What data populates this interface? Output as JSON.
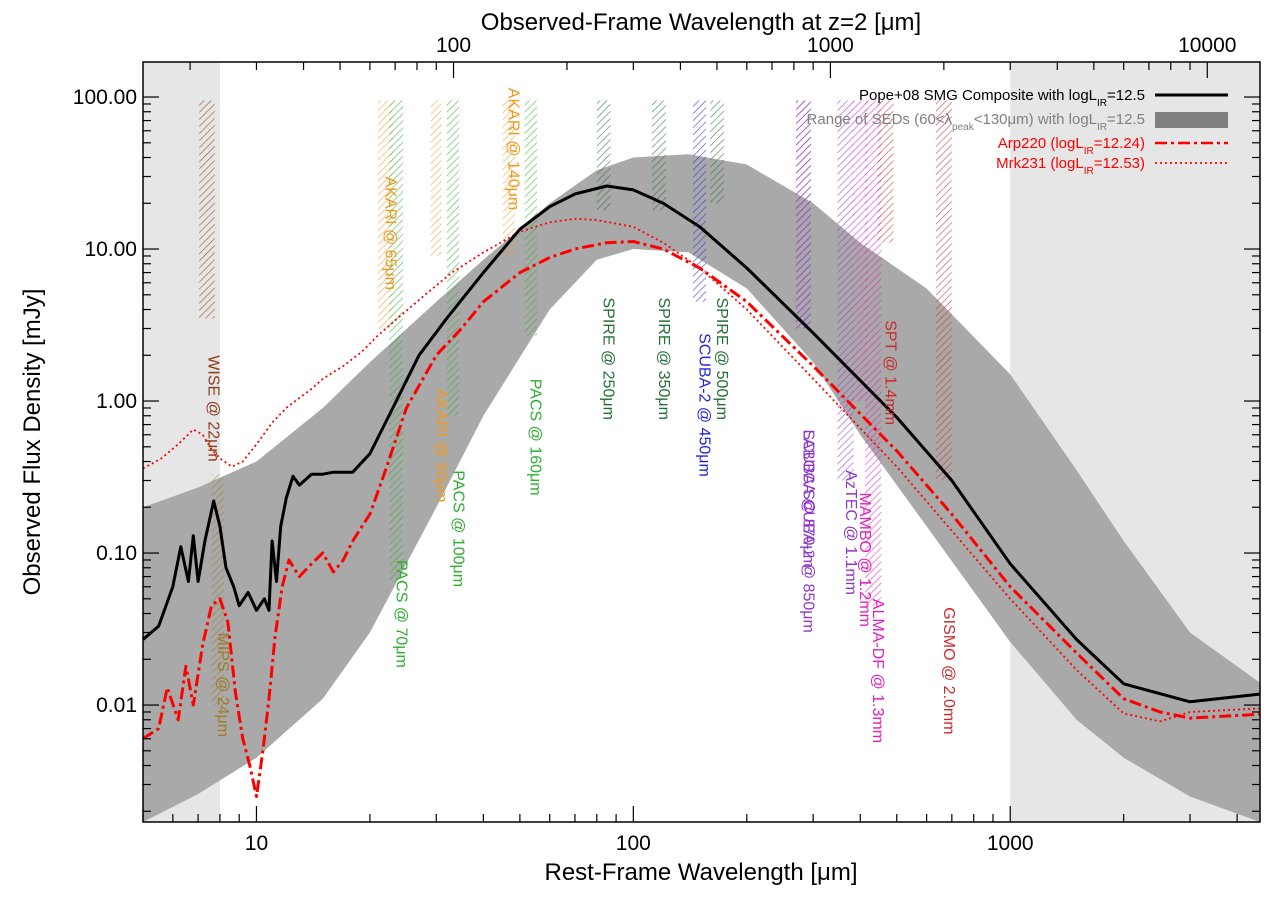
{
  "chart_data": {
    "type": "line",
    "scale": "log-log",
    "title": "",
    "xlabel": "Rest-Frame Wavelength [μm]",
    "x2label": "Observed-Frame Wavelength at z=2 [μm]",
    "ylabel": "Observed Flux Density [mJy]",
    "xlim": [
      5,
      4600
    ],
    "ylim": [
      0.0017,
      170
    ],
    "x2_redshift": 2,
    "xticks": [
      {
        "value": 10,
        "label": "10"
      },
      {
        "value": 100,
        "label": "100"
      },
      {
        "value": 1000,
        "label": "1000"
      }
    ],
    "x2ticks": [
      {
        "value": 100,
        "label": "100"
      },
      {
        "value": 1000,
        "label": "1000"
      },
      {
        "value": 10000,
        "label": "10000"
      }
    ],
    "yticks": [
      {
        "value": 0.01,
        "label": "0.01"
      },
      {
        "value": 0.1,
        "label": "0.10"
      },
      {
        "value": 1,
        "label": "1.00"
      },
      {
        "value": 10,
        "label": "10.00"
      },
      {
        "value": 100,
        "label": "100.00"
      }
    ],
    "excluded_regions": [
      {
        "x0": 5,
        "x1": 8
      },
      {
        "x0": 1000,
        "x1": 4600
      }
    ],
    "colors": {
      "pope": "#000000",
      "range": "#a9a9a9",
      "arp220": "#ff0000",
      "mrk231": "#ff0000",
      "excluded": "#e6e6e6"
    },
    "legend": {
      "position": "top-right",
      "entries": [
        {
          "key": "pope",
          "label": "Pope+08 SMG Composite with logL",
          "sub": "IR",
          "suffix": "=12.5",
          "color": "#000000",
          "style": "solid"
        },
        {
          "key": "range",
          "label": "Range of SEDs (60<λ",
          "sub": "peak",
          "suffix": "<130μm) with logL",
          "sub2": "IR",
          "suffix2": "=12.5",
          "color": "#7f7f7f",
          "style": "box"
        },
        {
          "key": "arp220",
          "label": "Arp220 (logL",
          "sub": "IR",
          "suffix": "=12.24)",
          "color": "#ff0000",
          "style": "dashdot"
        },
        {
          "key": "mrk231",
          "label": "Mrk231 (logL",
          "sub": "IR",
          "suffix": "=12.53)",
          "color": "#ff0000",
          "style": "dotted"
        }
      ]
    },
    "series": [
      {
        "name": "Pope+08 SMG Composite",
        "key": "pope",
        "x": [
          5,
          5.5,
          6,
          6.3,
          6.6,
          6.8,
          7.0,
          7.3,
          7.7,
          8.0,
          8.3,
          8.7,
          9.0,
          9.5,
          10.0,
          10.5,
          10.8,
          11.0,
          11.3,
          11.6,
          12.0,
          12.5,
          13.0,
          14.0,
          15,
          16,
          18,
          20,
          23,
          27,
          32,
          40,
          50,
          60,
          70,
          85,
          100,
          120,
          150,
          200,
          300,
          500,
          700,
          1000,
          1500,
          2000,
          3000,
          4600
        ],
        "y": [
          0.027,
          0.033,
          0.06,
          0.11,
          0.065,
          0.13,
          0.065,
          0.12,
          0.22,
          0.15,
          0.08,
          0.06,
          0.045,
          0.055,
          0.042,
          0.05,
          0.042,
          0.12,
          0.065,
          0.15,
          0.23,
          0.32,
          0.28,
          0.33,
          0.33,
          0.34,
          0.34,
          0.45,
          0.9,
          2.0,
          3.5,
          7.0,
          13.5,
          19.0,
          23.0,
          26.0,
          24.5,
          20.0,
          14.0,
          7.5,
          2.8,
          0.78,
          0.3,
          0.085,
          0.027,
          0.0138,
          0.0105,
          0.0118
        ]
      },
      {
        "name": "Arp220",
        "key": "arp220",
        "x": [
          5,
          5.5,
          5.8,
          6.2,
          6.5,
          6.8,
          7.2,
          7.6,
          8.0,
          8.4,
          8.8,
          9.2,
          9.6,
          10.0,
          10.4,
          10.8,
          11.2,
          11.7,
          12.2,
          13,
          14,
          15,
          16,
          17,
          18,
          20,
          22,
          25,
          30,
          35,
          40,
          50,
          60,
          70,
          85,
          100,
          120,
          150,
          200,
          300,
          500,
          700,
          1000,
          1500,
          2000,
          2500,
          3000,
          4600
        ],
        "y": [
          0.006,
          0.007,
          0.013,
          0.008,
          0.018,
          0.01,
          0.025,
          0.045,
          0.05,
          0.035,
          0.012,
          0.006,
          0.004,
          0.0025,
          0.005,
          0.011,
          0.028,
          0.06,
          0.09,
          0.07,
          0.085,
          0.1,
          0.075,
          0.09,
          0.12,
          0.18,
          0.35,
          0.9,
          2.0,
          3.0,
          4.5,
          7.0,
          8.8,
          10.0,
          11.0,
          11.2,
          10.0,
          7.5,
          4.5,
          1.7,
          0.47,
          0.18,
          0.06,
          0.022,
          0.011,
          0.009,
          0.0082,
          0.0087
        ]
      },
      {
        "name": "Mrk231",
        "key": "mrk231",
        "x": [
          5,
          5.6,
          6.2,
          6.8,
          7.2,
          7.6,
          8.0,
          8.6,
          9.2,
          10,
          11,
          12,
          13,
          14,
          15,
          17,
          19,
          21,
          24,
          28,
          33,
          40,
          50,
          60,
          70,
          80,
          100,
          120,
          150,
          200,
          300,
          500,
          700,
          1000,
          1500,
          2000,
          2500,
          3000,
          4600
        ],
        "y": [
          0.36,
          0.42,
          0.52,
          0.65,
          0.6,
          0.48,
          0.42,
          0.37,
          0.4,
          0.52,
          0.72,
          0.9,
          1.05,
          1.2,
          1.4,
          1.7,
          2.1,
          2.7,
          3.6,
          5.0,
          7.0,
          9.5,
          13.0,
          15.0,
          15.8,
          15.5,
          14.0,
          11.0,
          7.5,
          4.0,
          1.4,
          0.37,
          0.14,
          0.05,
          0.017,
          0.0088,
          0.0078,
          0.009,
          0.0095
        ]
      },
      {
        "name": "Range of SEDs",
        "key": "range",
        "type": "area",
        "x": [
          5,
          7,
          10,
          15,
          20,
          30,
          40,
          60,
          80,
          100,
          140,
          200,
          300,
          400,
          600,
          1000,
          1500,
          2000,
          3000,
          4600
        ],
        "y_low": [
          0.0017,
          0.0026,
          0.0045,
          0.011,
          0.03,
          0.2,
          0.8,
          4.0,
          8.5,
          10.0,
          9.5,
          5.5,
          1.8,
          0.6,
          0.15,
          0.026,
          0.008,
          0.0045,
          0.0025,
          0.0017
        ],
        "y_high": [
          0.2,
          0.27,
          0.4,
          0.9,
          1.8,
          4.5,
          8.5,
          20.0,
          33.0,
          40.0,
          42.0,
          36.0,
          20.0,
          11.0,
          5.5,
          1.5,
          0.35,
          0.12,
          0.03,
          0.014
        ]
      }
    ],
    "bands": [
      {
        "name": "WISE @ 22μm",
        "x0": 7.05,
        "x1": 7.75,
        "ytop": 95,
        "ybot": 3.5,
        "color": "#8b3a1a",
        "label_x": 7.45,
        "label_y": 2.0
      },
      {
        "name": "MIPS @ 24μm",
        "x0": 7.6,
        "x1": 8.2,
        "ytop": 0.33,
        "ybot": 0.01,
        "color": "#a07b28",
        "label_x": 7.9,
        "label_y": 0.03
      },
      {
        "name": "AKARI @ 65μm",
        "x0": 21,
        "x1": 23,
        "ytop": 95,
        "ybot": 3.0,
        "color": "#ee9a20",
        "label_x": 22,
        "label_y": 30
      },
      {
        "name": "PACS @ 70μm",
        "x0": 22.5,
        "x1": 24.5,
        "ytop": 95,
        "ybot": 0.065,
        "color": "#2eae30",
        "label_x": 23.5,
        "label_y": 0.09
      },
      {
        "name": "AKARI @ 90μm",
        "x0": 29,
        "x1": 31,
        "ytop": 95,
        "ybot": 9.0,
        "color": "#ee9a20",
        "label_x": 30,
        "label_y": 1.2
      },
      {
        "name": "PACS @ 100μm",
        "x0": 32,
        "x1": 34.5,
        "ytop": 95,
        "ybot": 0.8,
        "color": "#2eae30",
        "label_x": 33.3,
        "label_y": 0.35
      },
      {
        "name": "AKARI @ 140μm",
        "x0": 45,
        "x1": 48.5,
        "ytop": 95,
        "ybot": 9.0,
        "color": "#ee9a20",
        "label_x": 46.7,
        "label_y": 115
      },
      {
        "name": "PACS @ 160μm",
        "x0": 51.5,
        "x1": 55.5,
        "ytop": 95,
        "ybot": 2.7,
        "color": "#2eae30",
        "label_x": 53.3,
        "label_y": 1.4
      },
      {
        "name": "SPIRE @ 250μm",
        "x0": 80,
        "x1": 87,
        "ytop": 95,
        "ybot": 18,
        "color": "#226e34",
        "label_x": 83.3,
        "label_y": 4.8
      },
      {
        "name": "SPIRE @ 350μm",
        "x0": 112,
        "x1": 122,
        "ytop": 95,
        "ybot": 18,
        "color": "#226e34",
        "label_x": 117,
        "label_y": 4.8
      },
      {
        "name": "SCUBA-2 @ 450μm",
        "x0": 144,
        "x1": 156,
        "ytop": 95,
        "ybot": 4.5,
        "color": "#2222e0",
        "label_x": 150,
        "label_y": 2.8
      },
      {
        "name": "SPIRE @ 500μm",
        "x0": 160,
        "x1": 174,
        "ytop": 95,
        "ybot": 20,
        "color": "#226e34",
        "label_x": 166.7,
        "label_y": 4.8
      },
      {
        "name": "SCUBA/SCUBA-2 @ 850μm",
        "x0": 270,
        "x1": 296,
        "ytop": 95,
        "ybot": 3.0,
        "color": "#8e35cc",
        "label_x": 283,
        "label_y": 0.65
      },
      {
        "name": "LABOCA @ 870μm",
        "x0": 270,
        "x1": 296,
        "ytop": 95,
        "ybot": 3.0,
        "color": "#8e35cc",
        "label_x": 283,
        "label_y": 0.65
      },
      {
        "name": "AzTEC @ 1.1mm",
        "x0": 348,
        "x1": 384,
        "ytop": 95,
        "ybot": 0.3,
        "color": "#8e35cc",
        "label_x": 366.7,
        "label_y": 0.35
      },
      {
        "name": "MAMBO @ 1.2mm",
        "x0": 382,
        "x1": 418,
        "ytop": 95,
        "ybot": 1.0,
        "color": "#e020b8",
        "label_x": 400,
        "label_y": 0.25
      },
      {
        "name": "ALMA-DF @ 1.3mm",
        "x0": 412,
        "x1": 455,
        "ytop": 95,
        "ybot": 0.045,
        "color": "#e020b8",
        "label_x": 433,
        "label_y": 0.05
      },
      {
        "name": "SPT @ 1.4mm",
        "x0": 445,
        "x1": 490,
        "ytop": 95,
        "ybot": 11,
        "color": "#cc2a2a",
        "label_x": 467,
        "label_y": 3.4
      },
      {
        "name": "GISMO @ 2.0mm",
        "x0": 635,
        "x1": 700,
        "ytop": 95,
        "ybot": 0.3,
        "color": "#cc2a2a",
        "label_x": 667,
        "label_y": 0.044
      }
    ],
    "band_labels": [
      {
        "text": "WISE @ 22μm",
        "color": "#8b3a1a"
      },
      {
        "text": "MIPS @ 24μm",
        "color": "#a07b28"
      },
      {
        "text": "AKARI @ 65μm",
        "color": "#ee9a20"
      },
      {
        "text": "PACS @ 70μm",
        "color": "#2eae30"
      },
      {
        "text": "AKARI @ 90μm",
        "color": "#ee9a20"
      },
      {
        "text": "PACS @ 100μm",
        "color": "#2eae30"
      },
      {
        "text": "AKARI @ 140μm",
        "color": "#ee9a20"
      },
      {
        "text": "PACS @ 160μm",
        "color": "#2eae30"
      },
      {
        "text": "SPIRE @ 250μm",
        "color": "#226e34"
      },
      {
        "text": "SPIRE @ 350μm",
        "color": "#226e34"
      },
      {
        "text": "SCUBA-2 @ 450μm",
        "color": "#2222e0"
      },
      {
        "text": "SPIRE @ 500μm",
        "color": "#226e34"
      },
      {
        "text": "SCUBA/SCUBA-2 @ 850μm",
        "color": "#8e35cc"
      },
      {
        "text": "LABOCA @ 870μm",
        "color": "#8e35cc"
      },
      {
        "text": "AzTEC @ 1.1mm",
        "color": "#8e35cc"
      },
      {
        "text": "MAMBO @ 1.2mm",
        "color": "#e020b8"
      },
      {
        "text": "ALMA-DF @ 1.3mm",
        "color": "#e020b8"
      },
      {
        "text": "SPT @ 1.4mm",
        "color": "#cc2a2a"
      },
      {
        "text": "GISMO @ 2.0mm",
        "color": "#cc2a2a"
      }
    ]
  }
}
